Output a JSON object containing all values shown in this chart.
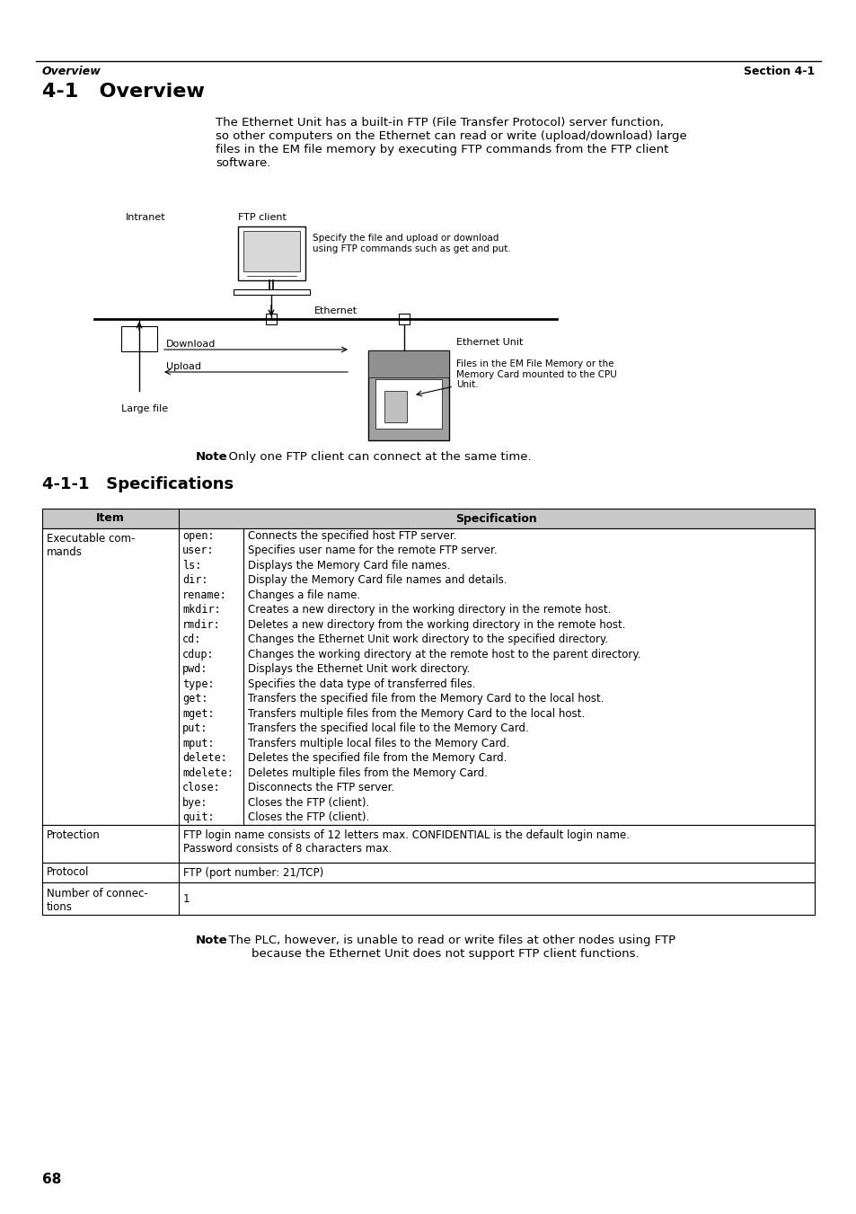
{
  "page_title_left": "Overview",
  "page_title_right": "Section 4-1",
  "section_title": "4-1   Overview",
  "subsection_title": "4-1-1   Specifications",
  "body_text": "The Ethernet Unit has a built-in FTP (File Transfer Protocol) server function,\nso other computers on the Ethernet can read or write (upload/download) large\nfiles in the EM file memory by executing FTP commands from the FTP client\nsoftware.",
  "note1_bold": "Note",
  "note1_text": "  Only one FTP client can connect at the same time.",
  "note2_bold": "Note",
  "note2_text": "  The PLC, however, is unable to read or write files at other nodes using FTP\n        because the Ethernet Unit does not support FTP client functions.",
  "page_number": "68",
  "diag_intranet": "Intranet",
  "diag_ftp_client": "FTP client",
  "diag_specify": "Specify the file and upload or download\nusing FTP commands such as get and put.",
  "diag_ethernet": "Ethernet",
  "diag_download": "Download",
  "diag_upload": "Upload",
  "diag_largefile": "Large file",
  "diag_ethernetunit": "Ethernet Unit",
  "diag_files": "Files in the EM File Memory or the\nMemory Card mounted to the CPU\nUnit.",
  "commands": [
    "open:",
    "user:",
    "ls:",
    "dir:",
    "rename:",
    "mkdir:",
    "rmdir:",
    "cd:",
    "cdup:",
    "pwd:",
    "type:",
    "get:",
    "mget:",
    "put:",
    "mput:",
    "delete:",
    "mdelete:",
    "close:",
    "bye:",
    "quit:"
  ],
  "descriptions": [
    "Connects the specified host FTP server.",
    "Specifies user name for the remote FTP server.",
    "Displays the Memory Card file names.",
    "Display the Memory Card file names and details.",
    "Changes a file name.",
    "Creates a new directory in the working directory in the remote host.",
    "Deletes a new directory from the working directory in the remote host.",
    "Changes the Ethernet Unit work directory to the specified directory.",
    "Changes the working directory at the remote host to the parent directory.",
    "Displays the Ethernet Unit work directory.",
    "Specifies the data type of transferred files.",
    "Transfers the specified file from the Memory Card to the local host.",
    "Transfers multiple files from the Memory Card to the local host.",
    "Transfers the specified local file to the Memory Card.",
    "Transfers multiple local files to the Memory Card.",
    "Deletes the specified file from the Memory Card.",
    "Deletes multiple files from the Memory Card.",
    "Disconnects the FTP server.",
    "Closes the FTP (client).",
    "Closes the FTP (client)."
  ],
  "protection_text": "FTP login name consists of 12 letters max. CONFIDENTIAL is the default login name.\nPassword consists of 8 characters max.",
  "protocol_text": "FTP (port number: 21/TCP)",
  "connections_text": "1",
  "header_gray": "#c8c8c8",
  "bg_color": "#ffffff"
}
